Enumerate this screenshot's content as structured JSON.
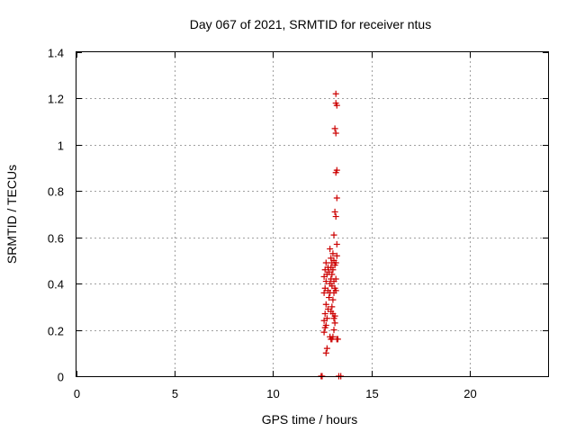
{
  "chart_data": {
    "type": "scatter",
    "title": "Day 067 of 2021, SRMTID for receiver ntus",
    "xlabel": "GPS time / hours",
    "ylabel": "SRMTID / TECUs",
    "xlim": [
      0,
      24
    ],
    "ylim": [
      0,
      1.4
    ],
    "xticks": [
      0,
      5,
      10,
      15,
      20
    ],
    "xtick_labels": [
      "0",
      "5",
      "10",
      "15",
      "20"
    ],
    "yticks": [
      0,
      0.2,
      0.4,
      0.6,
      0.8,
      1.0,
      1.2,
      1.4
    ],
    "ytick_labels": [
      "0",
      "0.2",
      "0.4",
      "0.6",
      "0.8",
      "1",
      "1.2",
      "1.4"
    ],
    "grid": true,
    "marker": "plus",
    "color": "#cc0000",
    "series": [
      {
        "name": "SRMTID",
        "points": [
          [
            12.45,
            0.0
          ],
          [
            12.5,
            0.0
          ],
          [
            13.35,
            0.0
          ],
          [
            13.45,
            0.0
          ],
          [
            12.7,
            0.1
          ],
          [
            12.75,
            0.12
          ],
          [
            12.6,
            0.19
          ],
          [
            12.65,
            0.21
          ],
          [
            12.6,
            0.24
          ],
          [
            12.65,
            0.27
          ],
          [
            12.7,
            0.22
          ],
          [
            12.75,
            0.25
          ],
          [
            12.8,
            0.29
          ],
          [
            12.7,
            0.31
          ],
          [
            12.6,
            0.36
          ],
          [
            12.65,
            0.38
          ],
          [
            12.7,
            0.41
          ],
          [
            12.6,
            0.43
          ],
          [
            12.65,
            0.46
          ],
          [
            12.75,
            0.44
          ],
          [
            12.8,
            0.47
          ],
          [
            12.7,
            0.49
          ],
          [
            12.85,
            0.34
          ],
          [
            12.9,
            0.36
          ],
          [
            12.8,
            0.37
          ],
          [
            12.9,
            0.4
          ],
          [
            12.95,
            0.42
          ],
          [
            12.85,
            0.45
          ],
          [
            12.9,
            0.17
          ],
          [
            12.95,
            0.16
          ],
          [
            13.0,
            0.16
          ],
          [
            13.05,
            0.17
          ],
          [
            13.25,
            0.16
          ],
          [
            13.3,
            0.16
          ],
          [
            13.1,
            0.2
          ],
          [
            13.15,
            0.23
          ],
          [
            13.1,
            0.25
          ],
          [
            13.05,
            0.27
          ],
          [
            13.15,
            0.26
          ],
          [
            12.95,
            0.28
          ],
          [
            13.0,
            0.3
          ],
          [
            13.05,
            0.33
          ],
          [
            13.1,
            0.36
          ],
          [
            13.2,
            0.37
          ],
          [
            13.15,
            0.38
          ],
          [
            13.0,
            0.39
          ],
          [
            13.1,
            0.41
          ],
          [
            13.2,
            0.42
          ],
          [
            13.0,
            0.44
          ],
          [
            13.05,
            0.46
          ],
          [
            12.95,
            0.47
          ],
          [
            13.0,
            0.49
          ],
          [
            13.1,
            0.5
          ],
          [
            13.2,
            0.49
          ],
          [
            12.95,
            0.51
          ],
          [
            13.05,
            0.53
          ],
          [
            12.9,
            0.55
          ],
          [
            13.25,
            0.52
          ],
          [
            13.15,
            0.48
          ],
          [
            13.1,
            0.61
          ],
          [
            13.25,
            0.57
          ],
          [
            13.2,
            0.69
          ],
          [
            13.15,
            0.71
          ],
          [
            13.25,
            0.77
          ],
          [
            13.2,
            0.88
          ],
          [
            13.25,
            0.89
          ],
          [
            13.2,
            1.05
          ],
          [
            13.15,
            1.07
          ],
          [
            13.25,
            1.17
          ],
          [
            13.2,
            1.18
          ],
          [
            13.2,
            1.22
          ]
        ]
      }
    ]
  }
}
